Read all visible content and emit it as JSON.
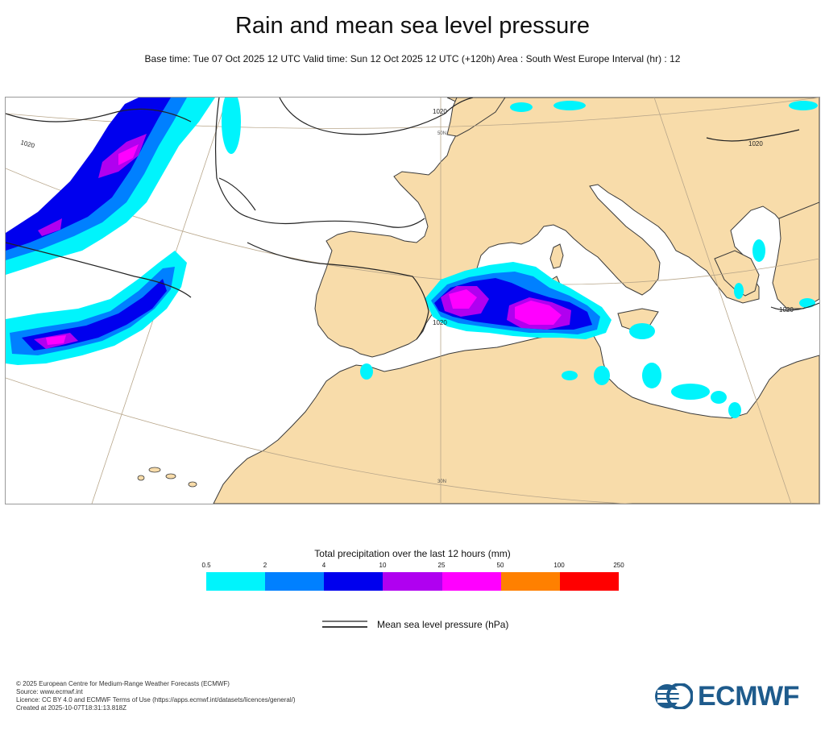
{
  "title": "Rain and mean sea level pressure",
  "subtitle": "Base time: Tue 07 Oct 2025 12 UTC Valid time: Sun 12 Oct 2025 12 UTC (+120h) Area : South West Europe Interval (hr) : 12",
  "map": {
    "isobar_labels": [
      "1020",
      "1020",
      "1020",
      "1020",
      "1020"
    ],
    "graticule_labels": [
      "50N",
      "30N"
    ],
    "colors": {
      "sea": "#ffffff",
      "land": "#f8dcaa",
      "coast": "#3a3a3a",
      "graticule": "#b8a68a",
      "isobar": "#222222"
    }
  },
  "legend": {
    "title": "Total precipitation over the last 12 hours (mm)",
    "ticks": [
      "0.5",
      "2",
      "4",
      "10",
      "25",
      "50",
      "100",
      "250"
    ],
    "colors": [
      "#00f4fc",
      "#0080ff",
      "#0000ee",
      "#b000f0",
      "#ff00ff",
      "#ff8000",
      "#ff0000"
    ],
    "msl_label": "Mean sea level pressure (hPa)"
  },
  "footer": {
    "copyright": "© 2025 European Centre for Medium-Range Weather Forecasts (ECMWF)",
    "source": "Source: www.ecmwf.int",
    "licence": "Licence: CC BY 4.0 and ECMWF Terms of Use (https://apps.ecmwf.int/datasets/licences/general/)",
    "created": "Created at 2025-10-07T18:31:13.818Z"
  },
  "logo": {
    "text": "ECMWF",
    "color": "#1e5b8c"
  }
}
